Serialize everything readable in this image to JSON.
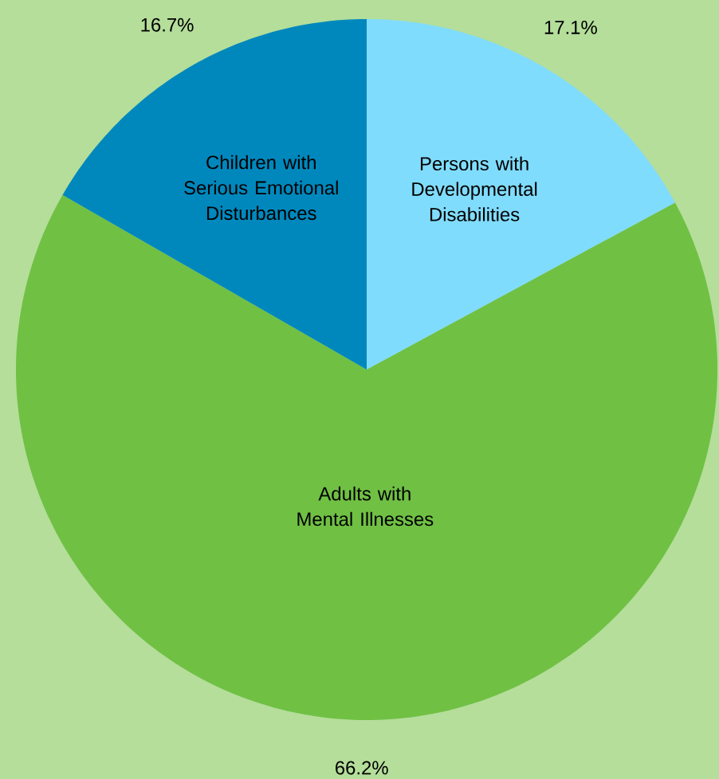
{
  "chart_data": {
    "type": "pie",
    "categories": [
      "Persons with Developmental Disabilities",
      "Adults with Mental Illnesses",
      "Children with Serious Emotional Disturbances"
    ],
    "values": [
      17.1,
      66.2,
      16.7
    ],
    "colors": [
      "#80dcfc",
      "#70c044",
      "#0088bd"
    ],
    "value_labels": [
      "17.1%",
      "66.2%",
      "16.7%"
    ]
  }
}
